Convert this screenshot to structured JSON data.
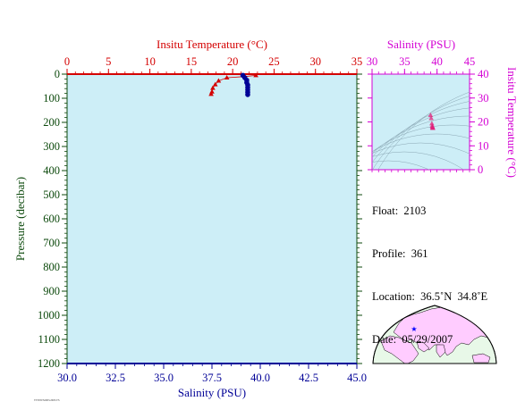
{
  "colors": {
    "temperature": "#d40000",
    "salinity": "#000096",
    "pressure_axis": "#0d4a0d",
    "inset_axis": "#d400d4",
    "plot_fill": "#cdeef7",
    "land": "#ffccff",
    "ocean": "#e8f8e8"
  },
  "chart_data": [
    {
      "type": "line",
      "subtype": "profile",
      "title": "",
      "top_axis_label": "Insitu Temperature (°C)",
      "top_axis_range": [
        0,
        35
      ],
      "top_axis_ticks": [
        "0",
        "5",
        "10",
        "15",
        "20",
        "25",
        "30",
        "35"
      ],
      "bottom_axis_label": "Salinity (PSU)",
      "bottom_axis_range": [
        30,
        45
      ],
      "bottom_axis_ticks": [
        "30.0",
        "32.5",
        "35.0",
        "37.5",
        "40.0",
        "42.5",
        "45.0"
      ],
      "left_axis_label": "Pressure (decibar)",
      "left_axis_range": [
        0,
        1200
      ],
      "left_axis_reversed": true,
      "left_axis_ticks": [
        "0",
        "100",
        "200",
        "300",
        "400",
        "500",
        "600",
        "700",
        "800",
        "900",
        "1000",
        "1100",
        "1200"
      ],
      "grid": false,
      "series": [
        {
          "color": "#d40000",
          "marker": "triangle",
          "x_axis": "top",
          "points": [
            [
              22.8,
              5
            ],
            [
              21.5,
              10
            ],
            [
              19.3,
              15
            ],
            [
              18.3,
              28
            ],
            [
              17.9,
              43
            ],
            [
              17.6,
              58
            ],
            [
              17.5,
              73
            ],
            [
              17.4,
              83
            ]
          ]
        },
        {
          "color": "#000096",
          "marker": "circle",
          "x_axis": "bottom",
          "points": [
            [
              39.1,
              5
            ],
            [
              39.2,
              15
            ],
            [
              39.3,
              25
            ],
            [
              39.3,
              35
            ],
            [
              39.35,
              45
            ],
            [
              39.35,
              55
            ],
            [
              39.35,
              65
            ],
            [
              39.35,
              75
            ],
            [
              39.35,
              85
            ]
          ]
        }
      ]
    },
    {
      "type": "scatter",
      "subtype": "TS-diagram",
      "title": "",
      "top_axis_label": "Salinity (PSU)",
      "top_axis_range": [
        30,
        45
      ],
      "top_axis_ticks": [
        "30",
        "35",
        "40",
        "45"
      ],
      "right_axis_label": "Insitu Temperature (°C)",
      "right_axis_range": [
        0,
        40
      ],
      "right_axis_ticks": [
        "0",
        "10",
        "20",
        "30",
        "40"
      ],
      "grid": false,
      "density_isolines": true,
      "series": [
        {
          "color": "#e0207a",
          "marker": "triangle",
          "points": [
            [
              39.0,
              22.8
            ],
            [
              39.1,
              21.5
            ],
            [
              39.2,
              19.3
            ],
            [
              39.25,
              18.3
            ],
            [
              39.3,
              17.9
            ],
            [
              39.3,
              17.6
            ],
            [
              39.35,
              17.5
            ],
            [
              39.35,
              17.4
            ]
          ]
        }
      ]
    }
  ],
  "info": {
    "float": "Float:  2103",
    "profile": "Profile:  361",
    "location": "Location:  36.5˚N  34.8˚E",
    "date": "Date:  05/29/2007"
  },
  "map": {
    "marker_icon": "location-star-icon"
  },
  "footer_text": "TTT0WS2003.2003.TS"
}
